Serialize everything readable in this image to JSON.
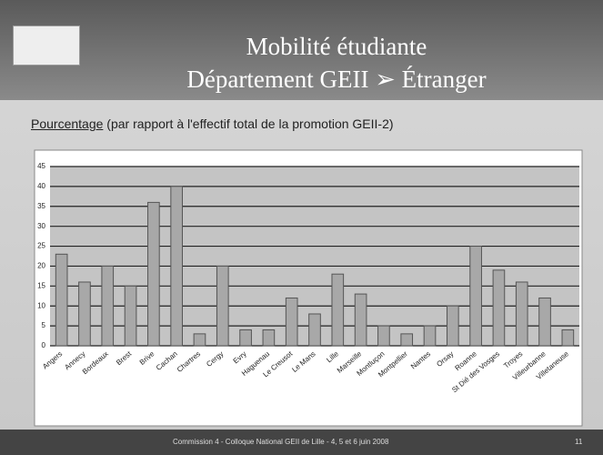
{
  "slide": {
    "title_line1": "Mobilité étudiante",
    "title_line2": "Département GEII ➢ Étranger",
    "subtitle_underlined": "Pourcentage",
    "subtitle_rest": "(par rapport à l'effectif total de la promotion GEII-2)",
    "footer": "Commission 4 - Colloque National GEII de Lille - 4, 5 et 6 juin 2008",
    "page_number": "11"
  },
  "chart_data": {
    "type": "bar",
    "categories": [
      "Angers",
      "Annecy",
      "Bordeaux",
      "Brest",
      "Brive",
      "Cachan",
      "Chartres",
      "Cergy",
      "Evry",
      "Haguenau",
      "Le Creusot",
      "Le Mans",
      "Lille",
      "Marseille",
      "Montluçon",
      "Montpellier",
      "Nantes",
      "Orsay",
      "Roanne",
      "St Dié des Vosges",
      "Troyes",
      "Villeurbanne",
      "Villetaneuse"
    ],
    "values": [
      23,
      16,
      20,
      15,
      36,
      40,
      3,
      20,
      4,
      4,
      12,
      8,
      18,
      13,
      5,
      3,
      5,
      10,
      25,
      19,
      16,
      12,
      4
    ],
    "color": "#a8a8a8",
    "ylim": [
      0,
      45
    ],
    "yticks": [
      0,
      5,
      10,
      15,
      20,
      25,
      30,
      35,
      40,
      45
    ],
    "grid": true
  }
}
